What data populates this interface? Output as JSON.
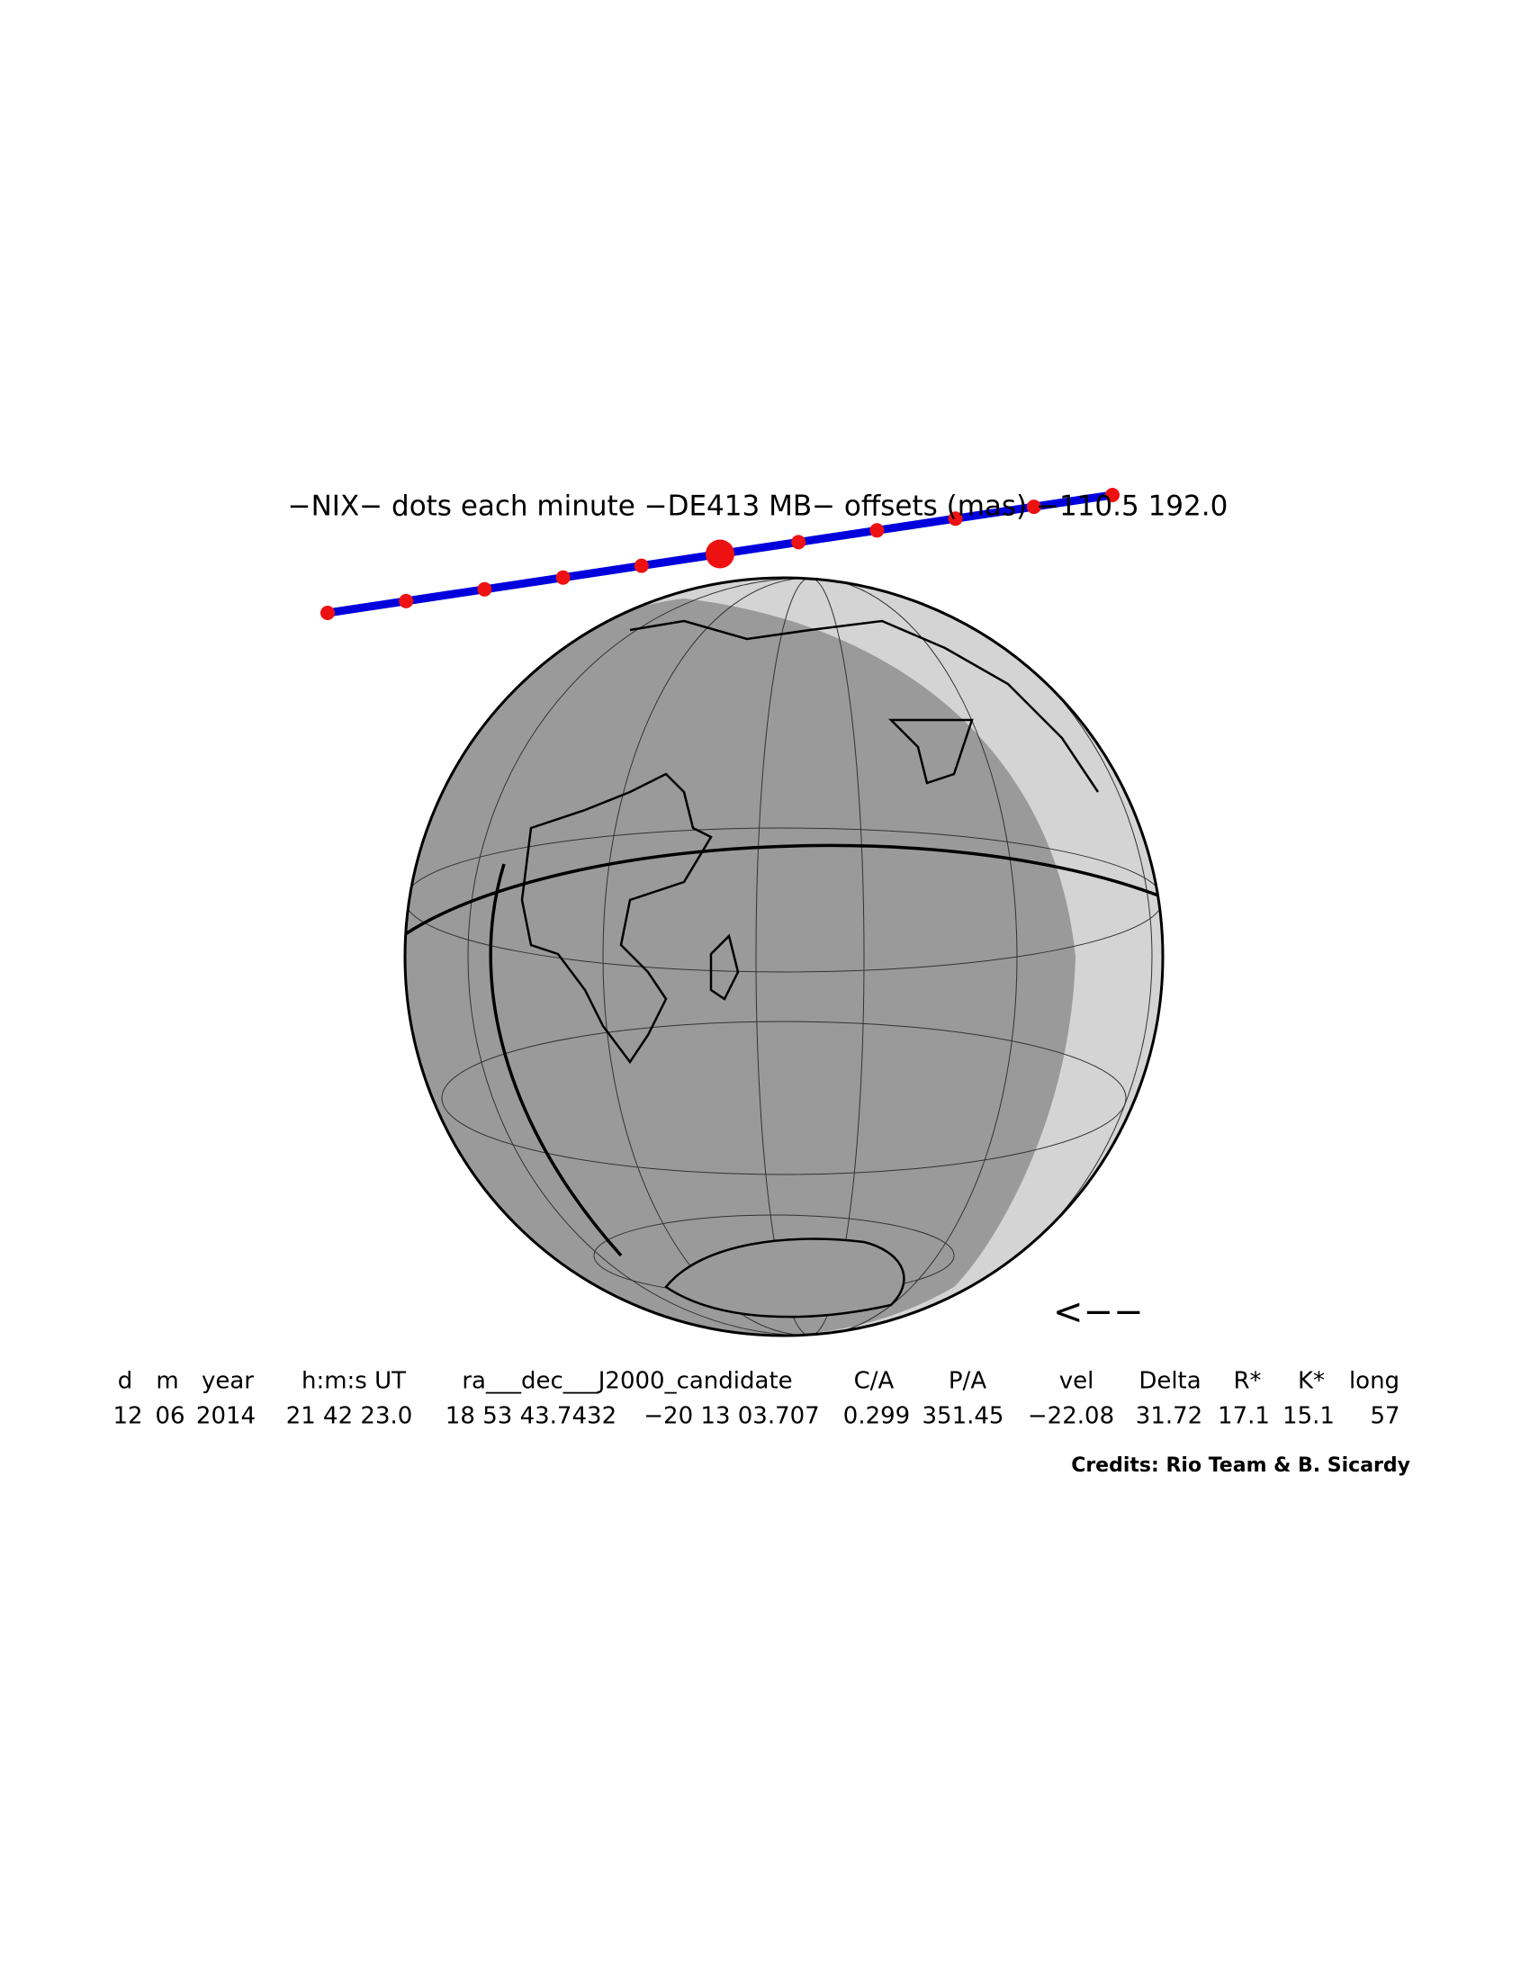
{
  "title": "−NIX− dots each minute −DE413 MB− offsets (mas) −110.5   192.0",
  "direction": "<−−",
  "table": {
    "header": [
      "d",
      "m",
      "year",
      "h:m:s UT",
      "ra___dec___J2000_candidate",
      "C/A",
      "P/A",
      "vel",
      "Delta",
      "R*",
      "K*",
      "long"
    ],
    "values": [
      "12",
      "06",
      "2014",
      "21 42 23.0",
      "18 53 43.7432",
      "−20 13 03.707",
      "0.299",
      "351.45",
      "−22.08",
      "31.72",
      "17.1",
      "15.1",
      "57"
    ]
  },
  "credits": "Credits: Rio Team & B. Sicardy"
}
